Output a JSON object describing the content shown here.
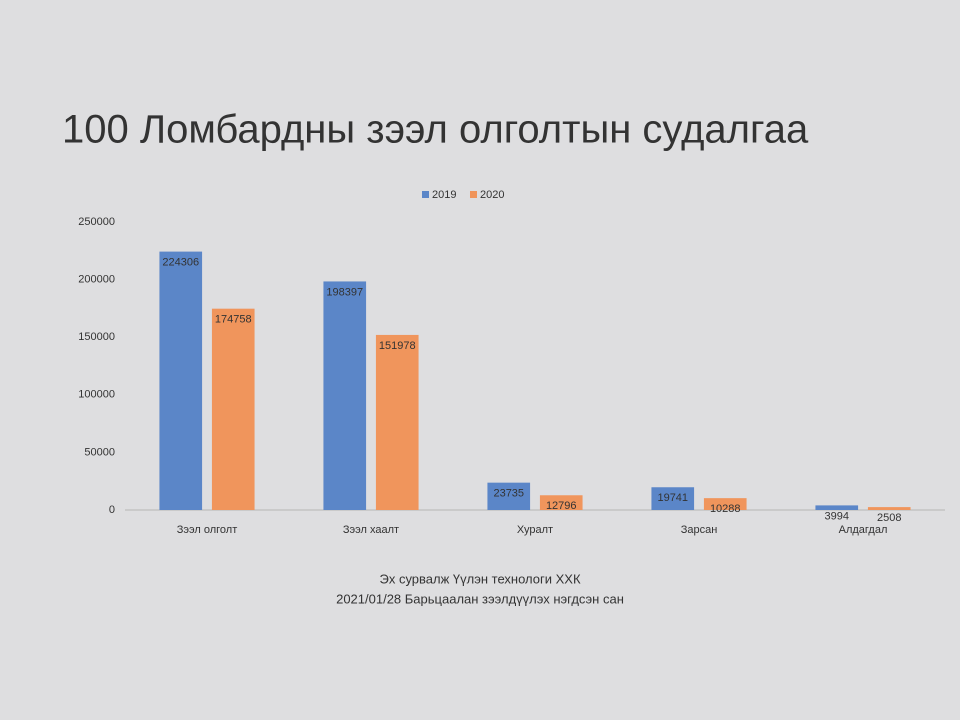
{
  "chart_data": {
    "type": "bar",
    "title": "100 Ломбардны зээл олголтын судалгаа",
    "categories": [
      "Зээл олголт",
      "Зээл хаалт",
      "Хуралт",
      "Зарсан",
      "Алдагдал"
    ],
    "series": [
      {
        "name": "2019",
        "color": "#5b86c8",
        "values": [
          224306,
          198397,
          23735,
          19741,
          3994
        ]
      },
      {
        "name": "2020",
        "color": "#f0955c",
        "values": [
          174758,
          151978,
          12796,
          10288,
          2508
        ]
      }
    ],
    "ylim": [
      0,
      250000
    ],
    "yticks": [
      0,
      50000,
      100000,
      150000,
      200000,
      250000
    ],
    "grid": false,
    "legend": "top",
    "notes": [
      "Эх сурвалж Үүлэн технологи ХХК",
      "2021/01/28 Барьцаалан зээлдүүлэх нэгдсэн сан"
    ]
  }
}
